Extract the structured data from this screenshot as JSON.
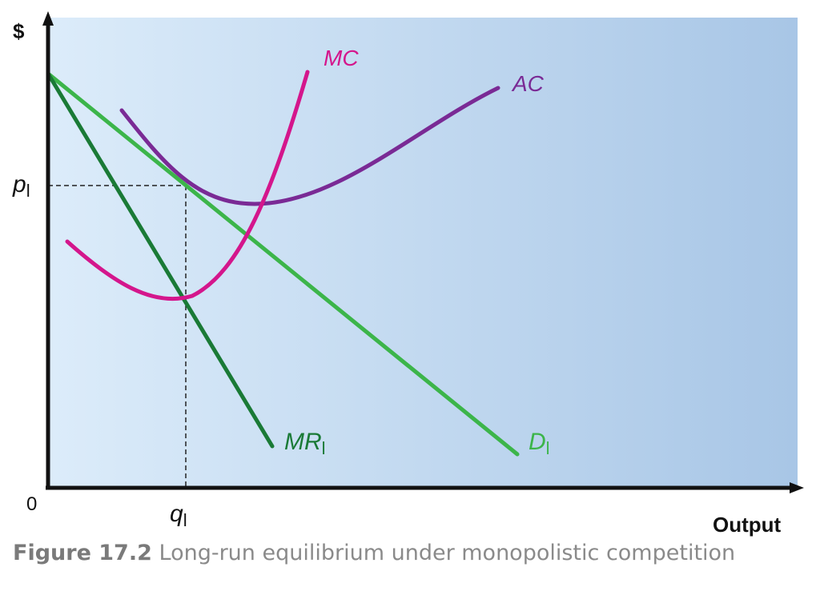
{
  "axes": {
    "y_label": "$",
    "x_label": "Output",
    "origin_label": "0"
  },
  "ticks": {
    "price": {
      "base": "p",
      "sub": "l"
    },
    "quantity": {
      "base": "q",
      "sub": "l"
    }
  },
  "curves": {
    "mc": {
      "label": "MC",
      "sub": "",
      "color": "#d4168c"
    },
    "ac": {
      "label": "AC",
      "sub": "",
      "color": "#7a2a95"
    },
    "d": {
      "label": "D",
      "sub": "l",
      "color": "#3cb54a"
    },
    "mr": {
      "label": "MR",
      "sub": "l",
      "color": "#1a7a36"
    }
  },
  "colors": {
    "background_left": "#dcecfa",
    "background_right": "#a8c6e6",
    "axis": "#111111",
    "guide": "#222222"
  },
  "caption": {
    "number": "Figure 17.2",
    "text": "Long-run equilibrium under monopolistic competition"
  }
}
